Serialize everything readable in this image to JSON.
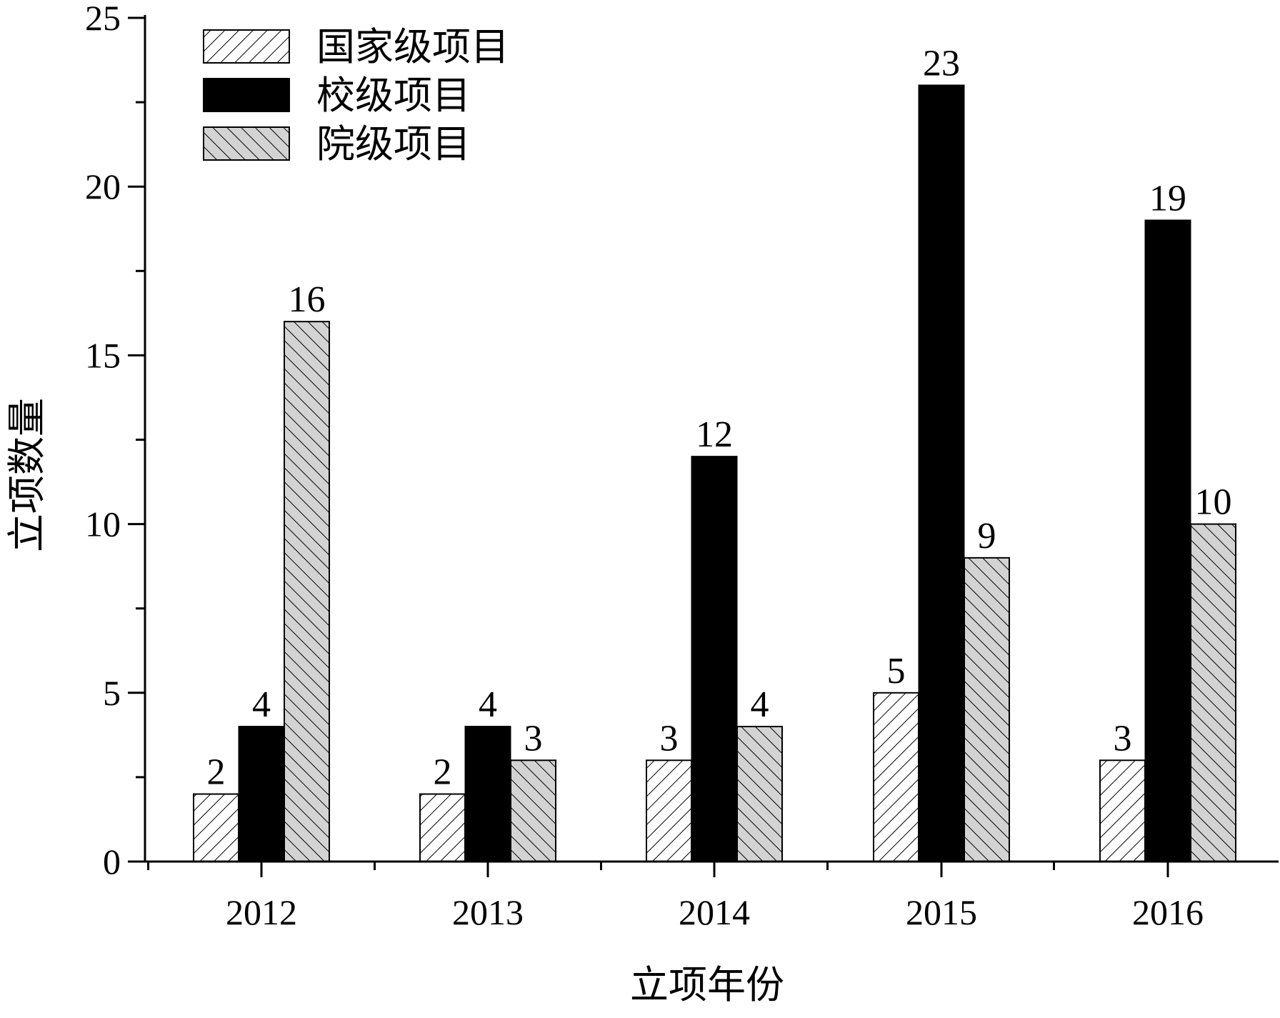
{
  "chart_data": {
    "type": "bar",
    "title": "",
    "xlabel": "立项年份",
    "ylabel": "立项数量",
    "categories": [
      "2012",
      "2013",
      "2014",
      "2015",
      "2016"
    ],
    "ylim": [
      0,
      25
    ],
    "yticks": [
      0,
      5,
      10,
      15,
      20,
      25
    ],
    "grid": false,
    "legend_position": "top-left",
    "series": [
      {
        "name": "国家级项目",
        "values": [
          2,
          2,
          3,
          5,
          3
        ],
        "fill": "hatch-back",
        "color": "#000000"
      },
      {
        "name": "校级项目",
        "values": [
          4,
          4,
          12,
          23,
          19
        ],
        "fill": "solid",
        "color": "#000000"
      },
      {
        "name": "院级项目",
        "values": [
          16,
          3,
          4,
          9,
          10
        ],
        "fill": "hatch-forward-gray",
        "color": "#d3d3d3"
      }
    ]
  }
}
